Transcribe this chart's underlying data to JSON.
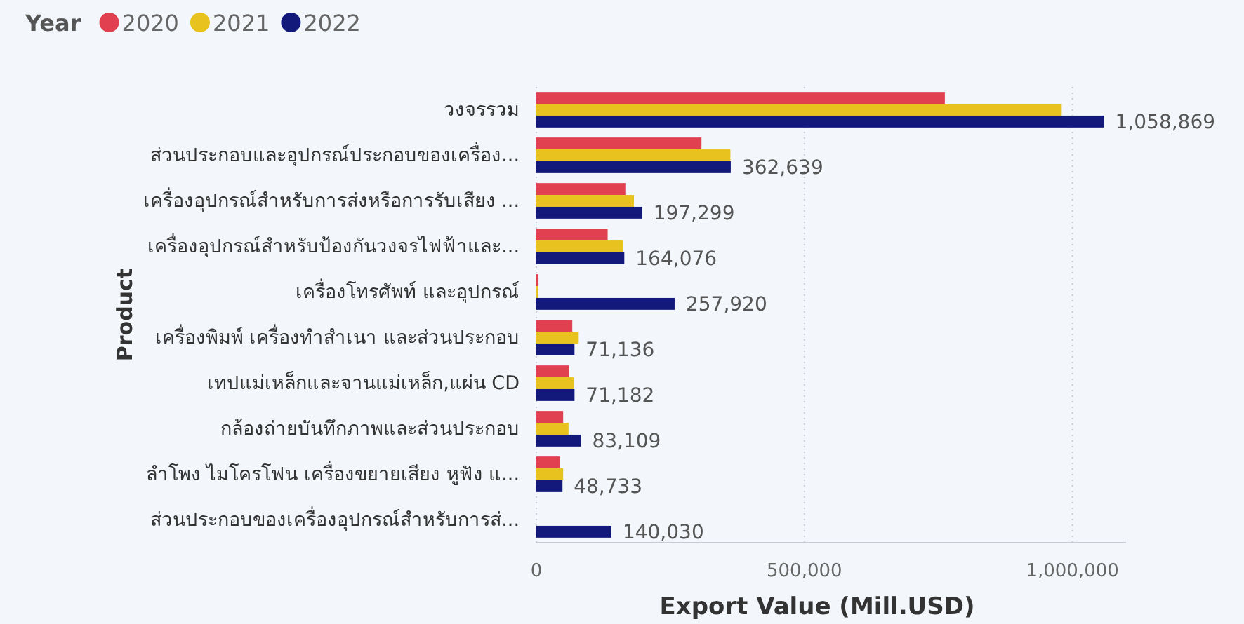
{
  "chart_data": {
    "type": "bar",
    "orientation": "horizontal",
    "legend_title": "Year",
    "legend": "top left",
    "ylabel": "Product",
    "xlabel": "Export Value (Mill.USD)",
    "grid": "x",
    "categories": [
      "วงจรรวม",
      "ส่วนประกอบและอุปกรณ์ประกอบของเครื่อง...",
      "เครื่องอุปกรณ์สำหรับการส่งหรือการรับเสียง ...",
      "เครื่องอุปกรณ์สำหรับป้องกันวงจรไฟฟ้าและ...",
      "เครื่องโทรศัพท์ และอุปกรณ์",
      "เครื่องพิมพ์ เครื่องทำสำเนา และส่วนประกอบ",
      "เทปแม่เหล็กและจานแม่เหล็ก,แผ่น CD",
      "กล้องถ่ายบันทึกภาพและส่วนประกอบ",
      "ลำโพง ไมโครโฟน เครื่องขยายเสียง หูฟัง แ...",
      "ส่วนประกอบของเครื่องอุปกรณ์สำหรับการส่..."
    ],
    "xlim": [
      0,
      1100000
    ],
    "xticks": [
      {
        "value": 0,
        "label": "0"
      },
      {
        "value": 500000,
        "label": "500,000"
      },
      {
        "value": 1000000,
        "label": "1,000,000"
      }
    ],
    "series": [
      {
        "name": "2020",
        "color": "#e0404f",
        "values": [
          762000,
          308000,
          166000,
          133000,
          4000,
          67000,
          61000,
          50000,
          44000,
          null
        ]
      },
      {
        "name": "2021",
        "color": "#e8c21f",
        "values": [
          980000,
          362000,
          182000,
          162000,
          3000,
          79000,
          70000,
          60000,
          50000,
          null
        ]
      },
      {
        "name": "2022",
        "color": "#12197a",
        "values": [
          1058869,
          362639,
          197299,
          164076,
          257920,
          71136,
          71182,
          83109,
          48733,
          140030
        ],
        "value_labels": [
          "1,058,869",
          "362,639",
          "197,299",
          "164,076",
          "257,920",
          "71,136",
          "71,182",
          "83,109",
          "48,733",
          "140,030"
        ]
      }
    ]
  }
}
